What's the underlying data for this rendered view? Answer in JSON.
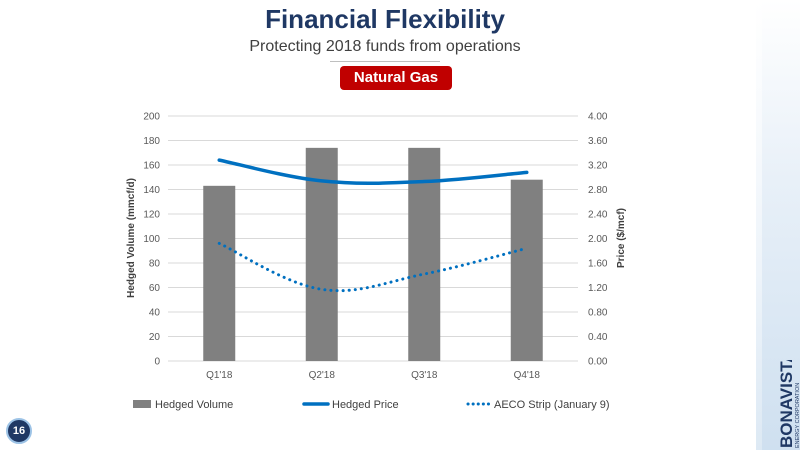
{
  "slide": {
    "title": "Financial Flexibility",
    "subtitle": "Protecting 2018 funds from operations",
    "badge": "Natural Gas",
    "page_number": "16",
    "logo_text": "BONAVISTA",
    "logo_subtext": "ENERGY CORPORATION"
  },
  "colors": {
    "title": "#1f3864",
    "badge": "#c00000",
    "bar": "#808080",
    "hedged_price": "#0070c0",
    "aeco": "#0070c0"
  },
  "chart_data": {
    "type": "bar",
    "categories": [
      "Q1'18",
      "Q2'18",
      "Q3'18",
      "Q4'18"
    ],
    "xlabel": "",
    "ylabel": "Hedged Volume (mmcf/d)",
    "y2label": "Price ($/mcf)",
    "ylim": [
      0,
      200
    ],
    "y2lim": [
      0,
      4
    ],
    "y_ticks": [
      "0",
      "20",
      "40",
      "60",
      "80",
      "100",
      "120",
      "140",
      "160",
      "180",
      "200"
    ],
    "y2_ticks": [
      "0.00",
      "0.40",
      "0.80",
      "1.20",
      "1.60",
      "2.00",
      "2.40",
      "2.80",
      "3.20",
      "3.60",
      "4.00"
    ],
    "grid": true,
    "legend_position": "bottom",
    "series": [
      {
        "name": "Hedged Volume",
        "type": "bar",
        "axis": "left",
        "values": [
          143,
          174,
          174,
          148
        ]
      },
      {
        "name": "Hedged Price",
        "type": "line",
        "axis": "right",
        "style": "solid",
        "values": [
          3.28,
          2.94,
          2.93,
          3.08
        ]
      },
      {
        "name": "AECO Strip (January 9)",
        "type": "line",
        "axis": "right",
        "style": "dotted",
        "values": [
          1.92,
          1.17,
          1.42,
          1.84
        ]
      }
    ]
  }
}
